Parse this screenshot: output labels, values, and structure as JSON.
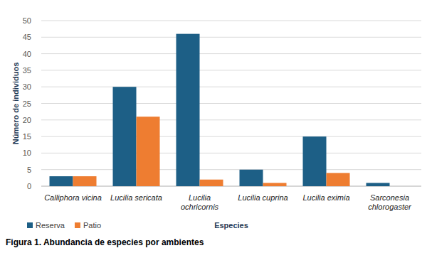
{
  "chart_data": {
    "type": "bar",
    "title": "Figura 1. Abundancia de especies por ambientes",
    "x_label": "Especies",
    "y_label": "Número de individuos",
    "categories": [
      "Calliphora vicina",
      "Lucilia sericata",
      "Lucilia ochricornis",
      "Lucilia cuprina",
      "Lucilia eximia",
      "Sarconesia chlorogaster"
    ],
    "series": [
      {
        "name": "Reserva",
        "color": "#1d5f86",
        "values": [
          3,
          30,
          46,
          5,
          15,
          1
        ]
      },
      {
        "name": "Patio",
        "color": "#ee7d31",
        "values": [
          3,
          21,
          2,
          1,
          4,
          0
        ]
      }
    ],
    "ylim": [
      0,
      50
    ],
    "yticks": [
      0,
      5,
      10,
      15,
      20,
      25,
      30,
      35,
      40,
      45,
      50
    ],
    "grid": true,
    "legend": "bottom-left"
  }
}
